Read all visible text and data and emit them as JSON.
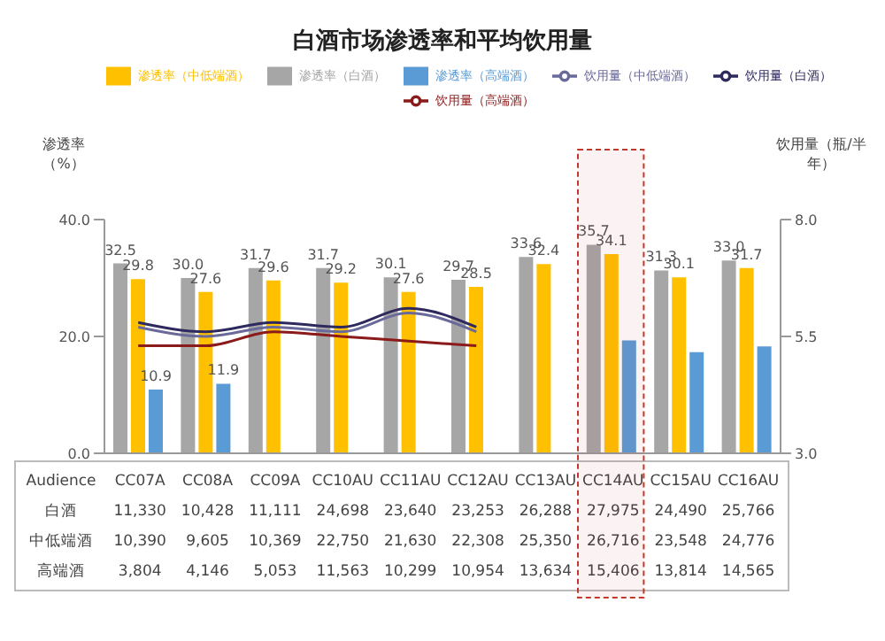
{
  "chart_data": {
    "type": "bar",
    "title": "白酒市场渗透率和平均饮用量",
    "ylabel": "渗透率（%）",
    "y2label": "饮用量（瓶/半年）",
    "categories": [
      "CC07A",
      "CC08A",
      "CC09A",
      "CC10AU",
      "CC11AU",
      "CC12AU",
      "CC13AU",
      "CC14AU",
      "CC15AU",
      "CC16AU"
    ],
    "series": [
      {
        "name": "渗透率（白酒）",
        "color": "#a6a6a6",
        "values": [
          32.5,
          30.0,
          31.7,
          31.7,
          30.1,
          29.7,
          33.6,
          35.7,
          31.3,
          33.0
        ],
        "value_labels": [
          "32.5",
          "30.0",
          "31.7",
          "31.7",
          "30.1",
          "29.7",
          "33.6",
          "35.7",
          "31.3",
          "33.0"
        ]
      },
      {
        "name": "渗透率（中低端酒）",
        "color": "#ffc000",
        "values": [
          29.8,
          27.6,
          29.6,
          29.2,
          27.6,
          28.5,
          32.4,
          34.1,
          30.1,
          31.7
        ],
        "value_labels": [
          "29.8",
          "27.6",
          "29.6",
          "29.2",
          "27.6",
          "28.5",
          "32.4",
          "34.1",
          "30.1",
          "31.7"
        ]
      },
      {
        "name": "渗透率（高端酒）",
        "color": "#5b9bd5",
        "values": [
          10.9,
          11.9,
          null,
          null,
          null,
          null,
          null,
          19.3,
          17.3,
          18.3
        ],
        "value_labels": [
          "10.9",
          "11.9",
          null,
          null,
          null,
          null,
          null,
          null,
          null,
          null
        ]
      },
      {
        "name": "饮用量（白酒）",
        "type": "line",
        "axis": "y2",
        "color": "#2e2a5e",
        "values": [
          5.8,
          5.6,
          5.8,
          5.7,
          6.1,
          5.7,
          null,
          null,
          null,
          null
        ]
      },
      {
        "name": "饮用量（中低端酒）",
        "type": "line",
        "axis": "y2",
        "color": "#6a6a9a",
        "values": [
          5.7,
          5.5,
          5.7,
          5.6,
          6.0,
          5.6,
          null,
          null,
          null,
          null
        ]
      },
      {
        "name": "饮用量（高端酒）",
        "type": "line",
        "axis": "y2",
        "color": "#8b1a1a",
        "values": [
          5.3,
          5.3,
          5.6,
          5.5,
          5.4,
          5.3,
          null,
          null,
          null,
          null
        ]
      }
    ],
    "ylim": [
      0,
      40
    ],
    "yticks": [
      {
        "value": 0,
        "label": "0.0"
      },
      {
        "value": 20,
        "label": "20.0"
      },
      {
        "value": 40,
        "label": "40.0"
      }
    ],
    "y2lim": [
      3,
      8
    ],
    "y2ticks": [
      {
        "value": 3,
        "label": "3.0"
      },
      {
        "value": 5.5,
        "label": "5.5"
      },
      {
        "value": 8,
        "label": "8.0"
      }
    ],
    "bands": [
      {
        "axis": "x",
        "from": "CC14AU",
        "to": "CC14AU",
        "color": "#c0392b"
      }
    ],
    "legend": "top",
    "marker": "none",
    "grid": false,
    "annotations": [
      "Audience",
      "白酒",
      "11,330",
      "10,428",
      "11,111",
      "24,698",
      "23,640",
      "23,253",
      "26,288",
      "27,975",
      "24,490",
      "25,766",
      "中低端酒",
      "10,390",
      "9,605",
      "10,369",
      "22,750",
      "21,630",
      "22,308",
      "25,350",
      "26,716",
      "23,548",
      "24,776",
      "高端酒",
      "3,804",
      "4,146",
      "5,053",
      "11,563",
      "10,299",
      "10,954",
      "13,634",
      "15,406",
      "13,814",
      "14,565"
    ]
  }
}
